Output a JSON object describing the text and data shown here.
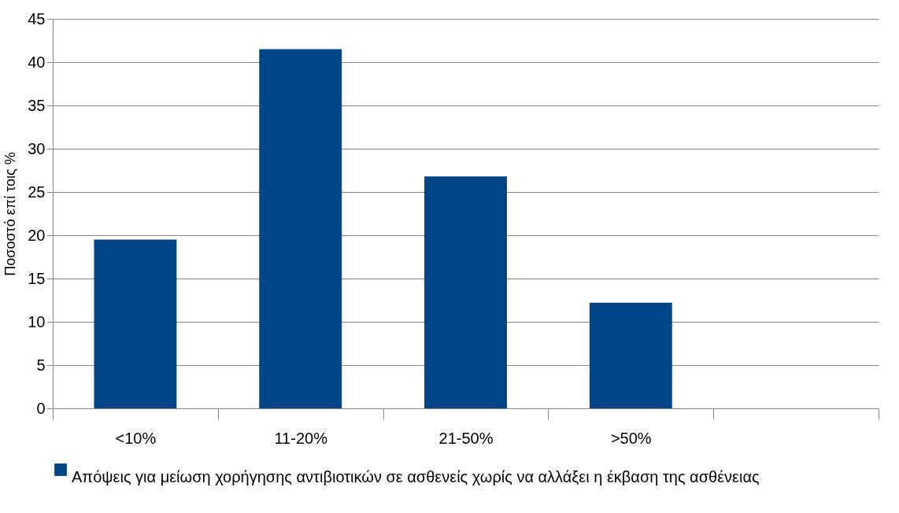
{
  "chart_data": {
    "type": "bar",
    "ylabel": "Ποσοστό επί τοις %",
    "categories": [
      "<10%",
      "11-20%",
      "21-50%",
      ">50%",
      null
    ],
    "series": [
      {
        "name": "Απόψεις για μείωση χορήγησης αντιβιοτικών σε ασθενείς χωρίς να αλλάξει η έκβαση της ασθένειας",
        "color": "#004586",
        "values": [
          19.5,
          41.5,
          26.8,
          12.2,
          null
        ]
      }
    ],
    "ylim": [
      0,
      45
    ],
    "yticks": [
      0,
      5,
      10,
      15,
      20,
      25,
      30,
      35,
      40,
      45
    ],
    "grid": "y",
    "legend": "bottom"
  }
}
